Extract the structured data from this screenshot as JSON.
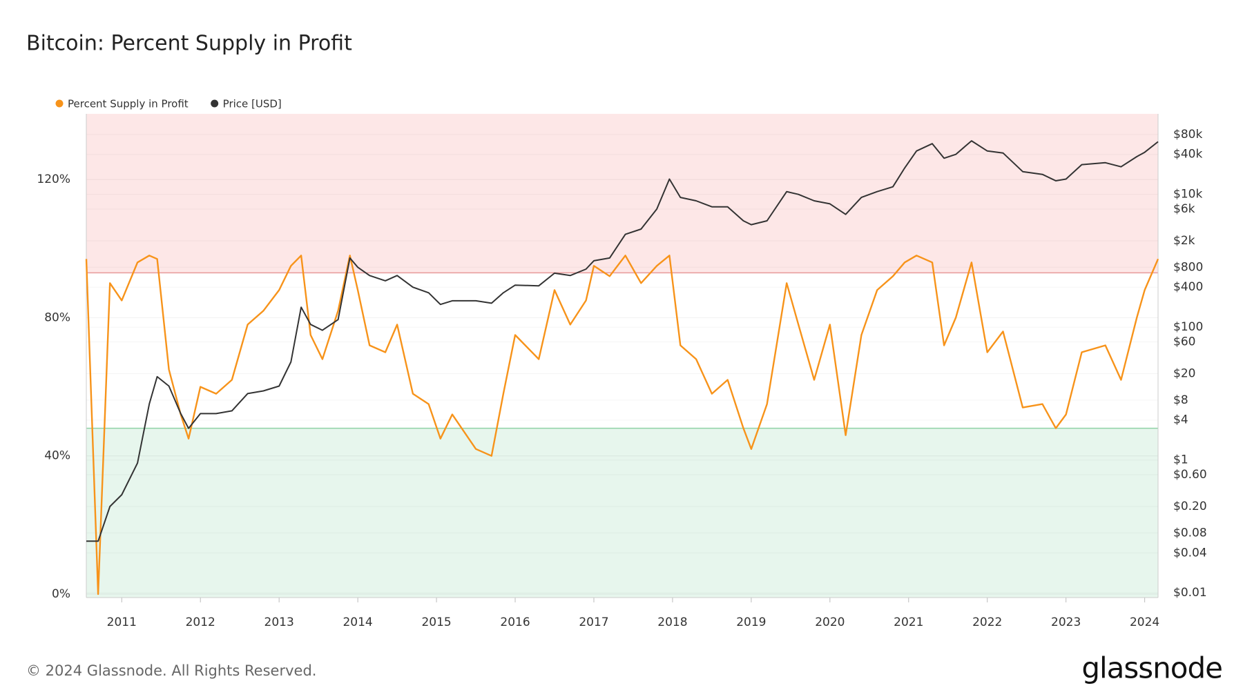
{
  "chart_data": {
    "type": "line",
    "title": "Bitcoin: Percent Supply in Profit",
    "footer": "© 2024 Glassnode. All Rights Reserved.",
    "brand": "glassnode",
    "x": [
      2010.55,
      2010.7,
      2010.85,
      2011.0,
      2011.2,
      2011.35,
      2011.45,
      2011.6,
      2011.75,
      2011.85,
      2012.0,
      2012.2,
      2012.4,
      2012.6,
      2012.8,
      2013.0,
      2013.15,
      2013.28,
      2013.4,
      2013.55,
      2013.75,
      2013.9,
      2014.0,
      2014.15,
      2014.35,
      2014.5,
      2014.7,
      2014.9,
      2015.05,
      2015.2,
      2015.5,
      2015.7,
      2015.85,
      2016.0,
      2016.3,
      2016.5,
      2016.7,
      2016.9,
      2017.0,
      2017.2,
      2017.4,
      2017.6,
      2017.8,
      2017.96,
      2018.1,
      2018.3,
      2018.5,
      2018.7,
      2018.9,
      2019.0,
      2019.2,
      2019.45,
      2019.6,
      2019.8,
      2020.0,
      2020.2,
      2020.4,
      2020.6,
      2020.8,
      2020.95,
      2021.1,
      2021.3,
      2021.45,
      2021.6,
      2021.8,
      2022.0,
      2022.2,
      2022.45,
      2022.7,
      2022.87,
      2023.0,
      2023.2,
      2023.5,
      2023.7,
      2023.9,
      2024.0,
      2024.17
    ],
    "series": [
      {
        "name": "Percent Supply in Profit",
        "color": "#f7931a",
        "axis": "y",
        "values": [
          97,
          0,
          90,
          85,
          96,
          98,
          97,
          65,
          52,
          45,
          60,
          58,
          62,
          78,
          82,
          88,
          95,
          98,
          75,
          68,
          82,
          98,
          88,
          72,
          70,
          78,
          58,
          55,
          45,
          52,
          42,
          40,
          58,
          75,
          68,
          88,
          78,
          85,
          95,
          92,
          98,
          90,
          95,
          98,
          72,
          68,
          58,
          62,
          48,
          42,
          55,
          90,
          78,
          62,
          78,
          46,
          75,
          88,
          92,
          96,
          98,
          96,
          72,
          80,
          96,
          70,
          76,
          54,
          55,
          48,
          52,
          70,
          72,
          62,
          80,
          88,
          97
        ]
      },
      {
        "name": "Price [USD]",
        "color": "#333333",
        "axis": "y2",
        "values": [
          0.06,
          0.06,
          0.2,
          0.3,
          0.9,
          7,
          18,
          13,
          5,
          3,
          5,
          5,
          5.5,
          10,
          11,
          13,
          30,
          200,
          110,
          90,
          130,
          1100,
          800,
          600,
          500,
          600,
          400,
          330,
          220,
          250,
          250,
          230,
          330,
          430,
          420,
          650,
          600,
          750,
          1000,
          1100,
          2500,
          3000,
          6000,
          17000,
          9000,
          8000,
          6500,
          6500,
          4000,
          3500,
          4000,
          11000,
          10000,
          8000,
          7200,
          5000,
          9000,
          11000,
          13000,
          25000,
          45000,
          58000,
          35000,
          40000,
          64000,
          45000,
          42000,
          22000,
          20000,
          16000,
          17000,
          28000,
          30000,
          26000,
          37000,
          43000,
          62000
        ]
      }
    ],
    "xlim": [
      2010.55,
      2024.17
    ],
    "xticks": [
      2011,
      2012,
      2013,
      2014,
      2015,
      2016,
      2017,
      2018,
      2019,
      2020,
      2021,
      2022,
      2023,
      2024
    ],
    "ylim": [
      -1,
      139
    ],
    "yticks": [
      {
        "value": 0,
        "label": "0%"
      },
      {
        "value": 40,
        "label": "40%"
      },
      {
        "value": 80,
        "label": "80%"
      },
      {
        "value": 120,
        "label": "120%"
      }
    ],
    "y2lim": [
      0.0085,
      163000
    ],
    "y2log": true,
    "y2ticks": [
      {
        "value": 80000,
        "label": "$80k"
      },
      {
        "value": 40000,
        "label": "$40k"
      },
      {
        "value": 10000,
        "label": "$10k"
      },
      {
        "value": 6000,
        "label": "$6k"
      },
      {
        "value": 2000,
        "label": "$2k"
      },
      {
        "value": 800,
        "label": "$800"
      },
      {
        "value": 400,
        "label": "$400"
      },
      {
        "value": 100,
        "label": "$100"
      },
      {
        "value": 60,
        "label": "$60"
      },
      {
        "value": 20,
        "label": "$20"
      },
      {
        "value": 8,
        "label": "$8"
      },
      {
        "value": 4,
        "label": "$4"
      },
      {
        "value": 1,
        "label": "$1"
      },
      {
        "value": 0.6,
        "label": "$0.60"
      },
      {
        "value": 0.2,
        "label": "$0.20"
      },
      {
        "value": 0.08,
        "label": "$0.08"
      },
      {
        "value": 0.04,
        "label": "$0.04"
      },
      {
        "value": 0.01,
        "label": "$0.01"
      }
    ],
    "grid": true,
    "legend": "top-left",
    "bands": [
      {
        "min": 93,
        "color": "#fde7e7",
        "line": "#e79a9a"
      },
      {
        "max": 48,
        "color": "#e7f6ed",
        "line": "#8fd1a6"
      }
    ]
  }
}
